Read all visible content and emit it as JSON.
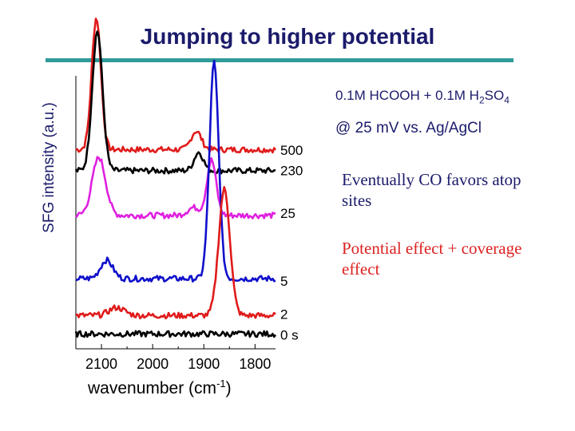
{
  "slide": {
    "title": "Jumping to higher potential",
    "condition_main": "0.1M HCOOH + 0.1M H",
    "condition_sub1": "2",
    "condition_mid": "SO",
    "condition_sub2": "4",
    "condition_potential": "@ 25 mV vs. Ag/AgCl",
    "note_1": "Eventually CO favors atop sites",
    "note_2": "Potential effect + coverage effect"
  },
  "colors": {
    "title": "#1b1b6b",
    "rule": "#2f9a9a",
    "note_highlight": "#dd2222"
  },
  "chart_data": {
    "type": "line",
    "title": "",
    "xlabel_base": "wavenumber (cm",
    "xlabel_sup": "-1",
    "xlabel_end": ")",
    "ylabel": "SFG intensity (a.u.)",
    "x_reversed": true,
    "xlim": [
      2150,
      1760
    ],
    "x_ticks": [
      2100,
      2000,
      1900,
      1800
    ],
    "x_tick_labels": [
      "2100",
      "2000",
      "1900",
      "1800"
    ],
    "y_ticks": false,
    "series": [
      {
        "label": "500",
        "color": "#e01b1b",
        "baseline": 0.72,
        "peaks": [
          [
            2110,
            0.5,
            9
          ],
          [
            1915,
            0.07,
            10
          ]
        ]
      },
      {
        "label": "230",
        "color": "#000000",
        "baseline": 0.64,
        "peaks": [
          [
            2108,
            0.53,
            10
          ],
          [
            1910,
            0.07,
            9
          ]
        ]
      },
      {
        "label": "25",
        "color": "#e020e0",
        "baseline": 0.47,
        "peaks": [
          [
            2105,
            0.22,
            13
          ],
          [
            1920,
            0.03,
            12
          ],
          [
            1885,
            0.21,
            9
          ]
        ]
      },
      {
        "label": "5",
        "color": "#1010cc",
        "baseline": 0.23,
        "peaks": [
          [
            2090,
            0.07,
            12
          ],
          [
            1880,
            0.82,
            9
          ]
        ]
      },
      {
        "label": "2",
        "color": "#e01b1b",
        "baseline": 0.09,
        "peaks": [
          [
            2070,
            0.03,
            15
          ],
          [
            1860,
            0.48,
            11
          ]
        ]
      },
      {
        "label": "0 s",
        "color": "#000000",
        "baseline": 0.02,
        "peaks": []
      }
    ]
  }
}
